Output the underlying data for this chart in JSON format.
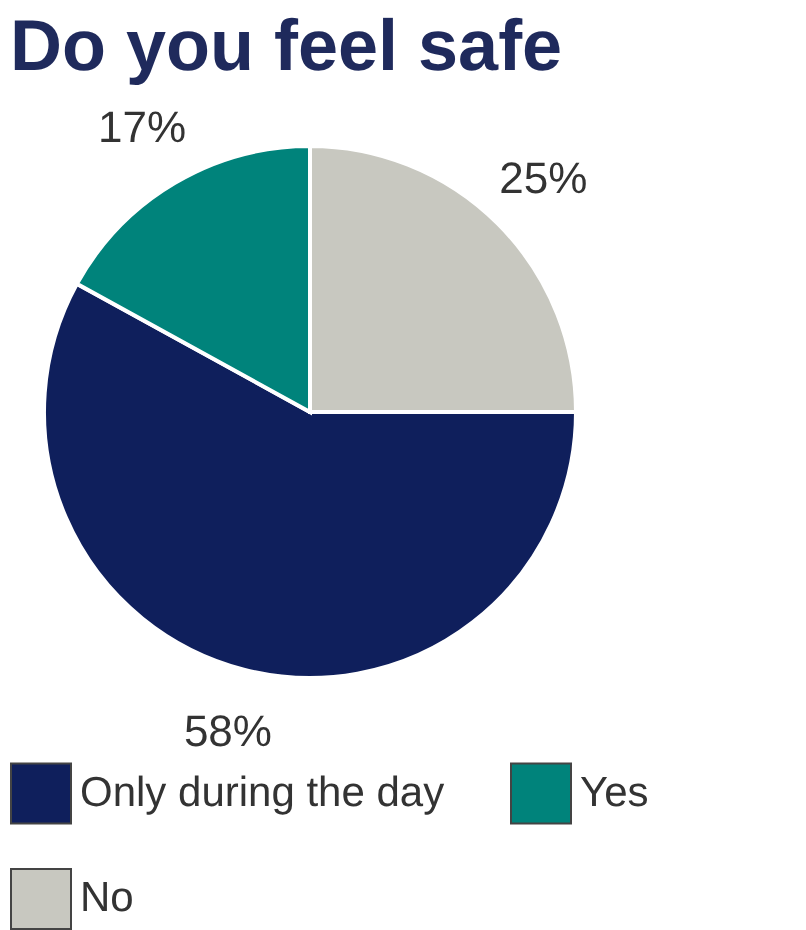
{
  "chart_data": {
    "type": "pie",
    "title": "Do you feel safe",
    "categories": [
      "Only during the day",
      "Yes",
      "No"
    ],
    "values": [
      58,
      17,
      25
    ],
    "value_labels": [
      "58%",
      "17%",
      "25%"
    ],
    "colors": [
      "#0f1f5c",
      "#00837b",
      "#c8c8c0"
    ],
    "legend": "bottom"
  }
}
